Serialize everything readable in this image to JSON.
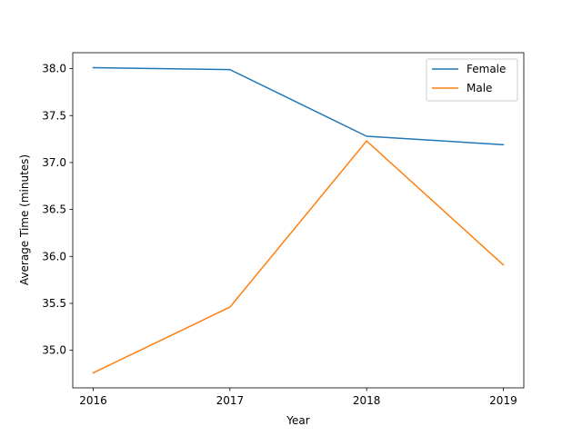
{
  "chart_data": {
    "type": "line",
    "title": "",
    "xlabel": "Year",
    "ylabel": "Average Time (minutes)",
    "x": [
      2016,
      2017,
      2018,
      2019
    ],
    "x_tick_labels": [
      "2016",
      "2017",
      "2018",
      "2019"
    ],
    "y_ticks": [
      35.0,
      35.5,
      36.0,
      36.5,
      37.0,
      37.5,
      38.0
    ],
    "y_tick_labels": [
      "35.0",
      "35.5",
      "36.0",
      "36.5",
      "37.0",
      "37.5",
      "38.0"
    ],
    "xlim": [
      2015.85,
      2019.15
    ],
    "ylim": [
      34.6,
      38.17
    ],
    "grid": false,
    "legend_position": "upper right",
    "series": [
      {
        "name": "Female",
        "color": "#1f77b4",
        "values": [
          38.01,
          37.99,
          37.28,
          37.19
        ]
      },
      {
        "name": "Male",
        "color": "#ff7f0e",
        "values": [
          34.76,
          35.46,
          37.23,
          35.91
        ]
      }
    ]
  }
}
